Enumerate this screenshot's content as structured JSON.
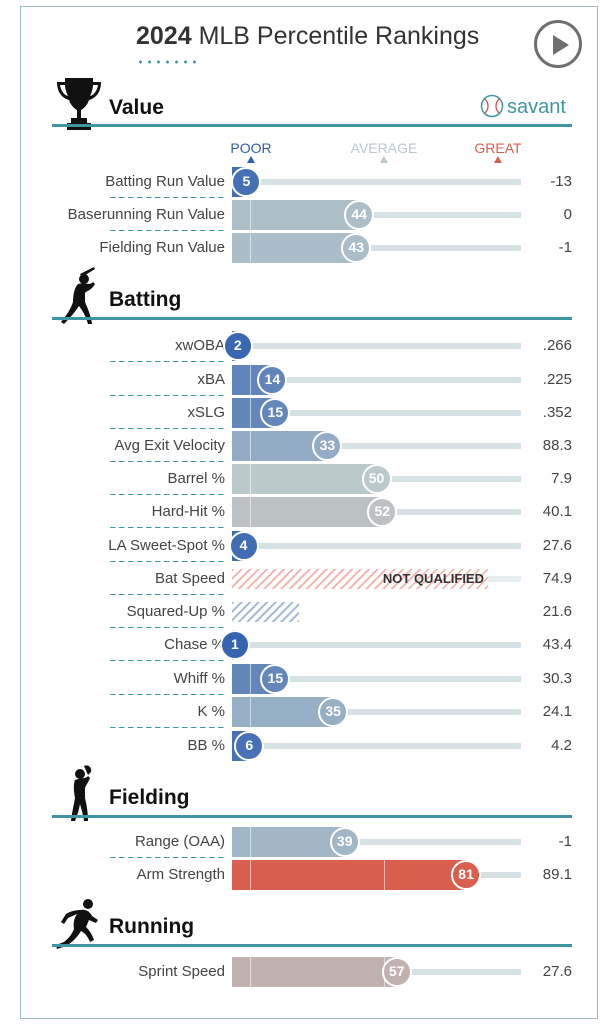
{
  "header": {
    "year": "2024",
    "title": "MLB Percentile Rankings",
    "play_label": "Play"
  },
  "brand": {
    "savant": "savant"
  },
  "scale": {
    "poor": "POOR",
    "average": "AVERAGE",
    "great": "GREAT"
  },
  "colors": {
    "accent": "#3f96a3",
    "poor": "#2f5fb0",
    "average": "#bac9cc",
    "great": "#d95f4f"
  },
  "sections": [
    {
      "title": "Value",
      "icon": "trophy-icon"
    },
    {
      "title": "Batting",
      "icon": "batter-icon"
    },
    {
      "title": "Fielding",
      "icon": "fielder-icon"
    },
    {
      "title": "Running",
      "icon": "runner-icon"
    }
  ],
  "chart_data": {
    "type": "bar",
    "title": "2024 MLB Percentile Rankings",
    "xlim": [
      0,
      100
    ],
    "groups": [
      {
        "name": "Value",
        "metrics": [
          {
            "label": "Batting Run Value",
            "percentile": 5,
            "value": "-13"
          },
          {
            "label": "Baserunning Run Value",
            "percentile": 44,
            "value": "0"
          },
          {
            "label": "Fielding Run Value",
            "percentile": 43,
            "value": "-1"
          }
        ]
      },
      {
        "name": "Batting",
        "metrics": [
          {
            "label": "xwOBA",
            "percentile": 2,
            "value": ".266"
          },
          {
            "label": "xBA",
            "percentile": 14,
            "value": ".225"
          },
          {
            "label": "xSLG",
            "percentile": 15,
            "value": ".352"
          },
          {
            "label": "Avg Exit Velocity",
            "percentile": 33,
            "value": "88.3"
          },
          {
            "label": "Barrel %",
            "percentile": 50,
            "value": "7.9"
          },
          {
            "label": "Hard-Hit %",
            "percentile": 52,
            "value": "40.1"
          },
          {
            "label": "LA Sweet-Spot %",
            "percentile": 4,
            "value": "27.6"
          },
          {
            "label": "Bat Speed",
            "percentile": null,
            "status": "NOT QUALIFIED",
            "value": "74.9"
          },
          {
            "label": "Squared-Up %",
            "percentile": null,
            "status": "",
            "value": "21.6"
          },
          {
            "label": "Chase %",
            "percentile": 1,
            "value": "43.4"
          },
          {
            "label": "Whiff %",
            "percentile": 15,
            "value": "30.3"
          },
          {
            "label": "K %",
            "percentile": 35,
            "value": "24.1"
          },
          {
            "label": "BB %",
            "percentile": 6,
            "value": "4.2"
          }
        ]
      },
      {
        "name": "Fielding",
        "metrics": [
          {
            "label": "Range (OAA)",
            "percentile": 39,
            "value": "-1"
          },
          {
            "label": "Arm Strength",
            "percentile": 81,
            "value": "89.1"
          }
        ]
      },
      {
        "name": "Running",
        "metrics": [
          {
            "label": "Sprint Speed",
            "percentile": 57,
            "value": "27.6"
          }
        ]
      }
    ]
  }
}
